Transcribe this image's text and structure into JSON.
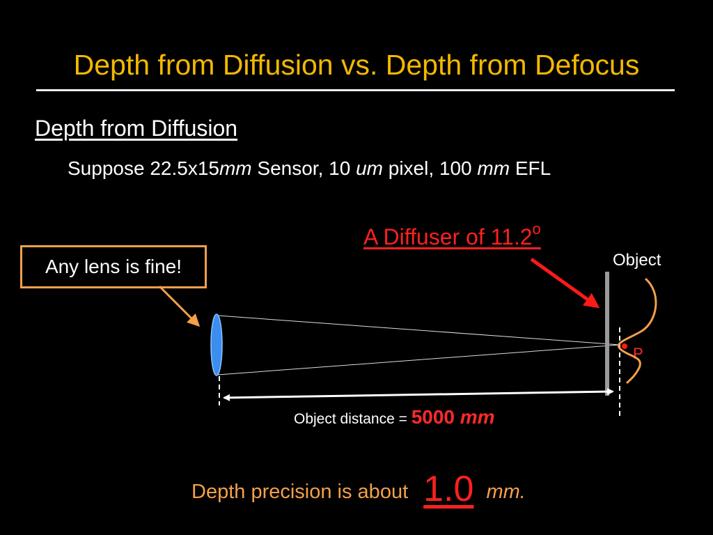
{
  "slide": {
    "title": "Depth from Diffusion vs. Depth from Defocus",
    "heading": "Depth from Diffusion",
    "spec": {
      "part1": "Suppose 22.5x15",
      "unit1": "mm",
      "part2": " Sensor, 10 ",
      "unit2": "um",
      "part3": " pixel, 100 ",
      "unit3": "mm",
      "part4": " EFL"
    }
  },
  "diagram": {
    "diffuser_label": "A Diffuser of 11.2",
    "diffuser_degree": "o",
    "lens_note": "Any lens is fine!",
    "object_label": "Object",
    "point_label": "P",
    "distance": {
      "label": "Object distance = ",
      "value": "5000",
      "unit": "mm"
    }
  },
  "conclusion": {
    "text": "Depth precision is about",
    "value": "1.0",
    "unit": "mm."
  },
  "colors": {
    "title": "#f5b800",
    "accent_red": "#ff2020",
    "accent_orange": "#f4a04a",
    "lens_blue": "#3b8ef0"
  }
}
